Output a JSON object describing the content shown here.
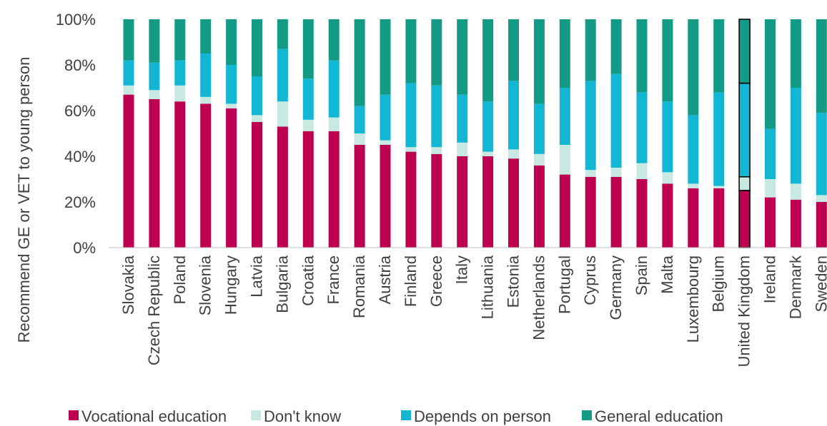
{
  "chart_data": {
    "type": "bar",
    "stacked": true,
    "orientation": "vertical",
    "title": "",
    "xlabel": "",
    "ylabel": "Recommend GE or VET to young person",
    "ylim": [
      0,
      100
    ],
    "yticks": [
      "0%",
      "20%",
      "40%",
      "60%",
      "80%",
      "100%"
    ],
    "grid": false,
    "legend_position": "bottom",
    "highlighted_category": "United Kingdom",
    "categories": [
      "Slovakia",
      "Czech Republic",
      "Poland",
      "Slovenia",
      "Hungary",
      "Latvia",
      "Bulgaria",
      "Croatia",
      "France",
      "Romania",
      "Austria",
      "Finland",
      "Greece",
      "Italy",
      "Lithuania",
      "Estonia",
      "Netherlands",
      "Portugal",
      "Cyprus",
      "Germany",
      "Spain",
      "Malta",
      "Luxembourg",
      "Belgium",
      "United Kingdom",
      "Ireland",
      "Denmark",
      "Sweden"
    ],
    "series": [
      {
        "name": "Vocational education",
        "color": "#be0050",
        "values": [
          67,
          65,
          64,
          63,
          61,
          55,
          53,
          51,
          51,
          45,
          45,
          42,
          41,
          40,
          40,
          39,
          36,
          32,
          31,
          31,
          30,
          28,
          26,
          26,
          25,
          22,
          21,
          20
        ]
      },
      {
        "name": "Don't know",
        "color": "#c8e8e2",
        "values": [
          4,
          4,
          7,
          3,
          2,
          3,
          11,
          5,
          6,
          5,
          2,
          2,
          3,
          6,
          2,
          4,
          5,
          13,
          3,
          4,
          7,
          5,
          2,
          1,
          6,
          8,
          7,
          3
        ]
      },
      {
        "name": "Depends on person",
        "color": "#13b6d3",
        "values": [
          11,
          12,
          11,
          19,
          17,
          17,
          23,
          18,
          25,
          12,
          20,
          28,
          27,
          21,
          22,
          30,
          22,
          25,
          39,
          41,
          31,
          31,
          30,
          41,
          41,
          22,
          42,
          36
        ]
      },
      {
        "name": "General education",
        "color": "#139b86",
        "values": [
          18,
          19,
          18,
          15,
          20,
          25,
          13,
          26,
          18,
          38,
          33,
          28,
          29,
          33,
          36,
          27,
          37,
          30,
          27,
          24,
          32,
          36,
          42,
          32,
          28,
          48,
          30,
          41
        ]
      }
    ]
  }
}
